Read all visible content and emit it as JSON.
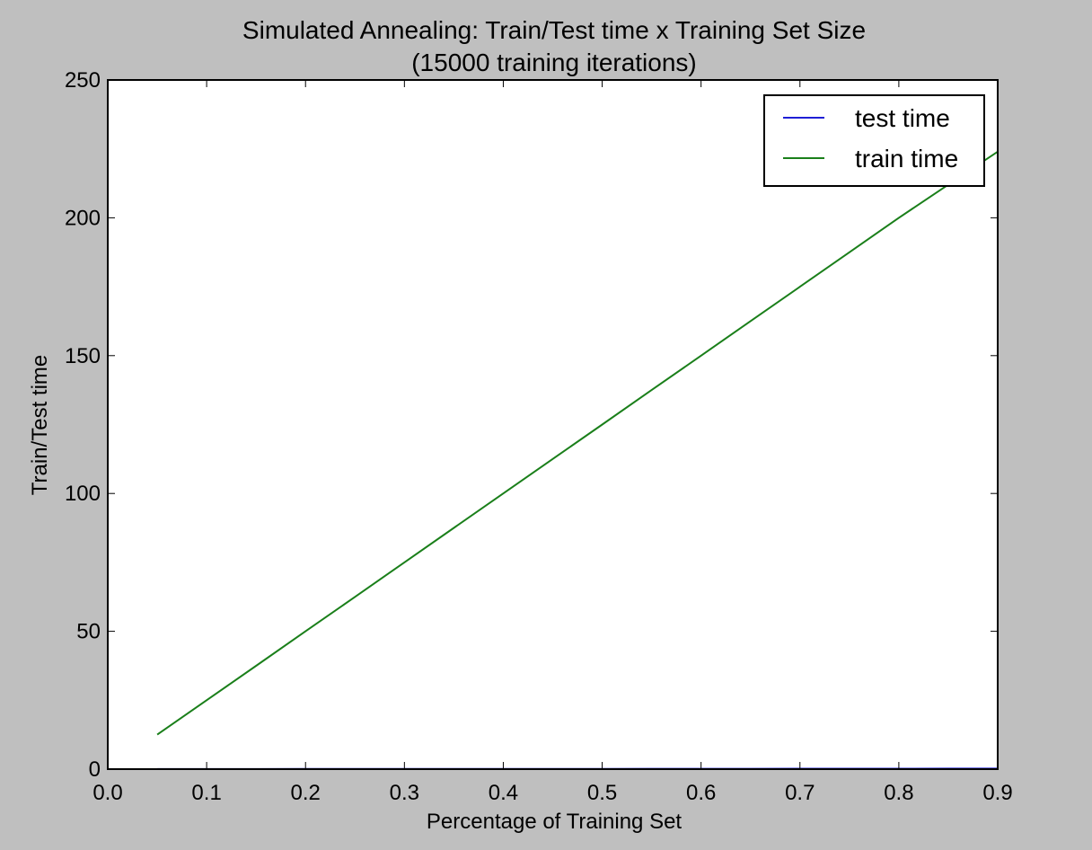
{
  "chart_data": {
    "type": "line",
    "title": "Simulated Annealing: Train/Test time x Training Set Size",
    "subtitle": "(15000 training iterations)",
    "xlabel": "Percentage of Training Set",
    "ylabel": "Train/Test time",
    "xlim": [
      0.0,
      0.9
    ],
    "ylim": [
      0,
      250
    ],
    "xticks": [
      0.0,
      0.1,
      0.2,
      0.3,
      0.4,
      0.5,
      0.6,
      0.7,
      0.8,
      0.9
    ],
    "xtick_labels": [
      "0.0",
      "0.1",
      "0.2",
      "0.3",
      "0.4",
      "0.5",
      "0.6",
      "0.7",
      "0.8",
      "0.9"
    ],
    "yticks": [
      0,
      50,
      100,
      150,
      200,
      250
    ],
    "ytick_labels": [
      "0",
      "50",
      "100",
      "150",
      "200",
      "250"
    ],
    "grid": false,
    "legend_position": "top-right",
    "series": [
      {
        "name": "test time",
        "color": "#1f1fd6",
        "x": [
          0.05,
          0.1,
          0.15,
          0.2,
          0.25,
          0.3,
          0.35,
          0.4,
          0.45,
          0.5,
          0.55,
          0.6,
          0.65,
          0.7,
          0.75,
          0.8,
          0.85,
          0.9
        ],
        "y": [
          0.02,
          0.03,
          0.04,
          0.05,
          0.06,
          0.07,
          0.08,
          0.09,
          0.1,
          0.11,
          0.12,
          0.13,
          0.14,
          0.15,
          0.16,
          0.17,
          0.18,
          0.19
        ]
      },
      {
        "name": "train time",
        "color": "#1a7f1a",
        "x": [
          0.05,
          0.1,
          0.15,
          0.2,
          0.25,
          0.3,
          0.35,
          0.4,
          0.45,
          0.5,
          0.55,
          0.6,
          0.65,
          0.7,
          0.75,
          0.8,
          0.85,
          0.9
        ],
        "y": [
          12.5,
          25,
          37.5,
          50,
          62.5,
          75,
          87.5,
          100,
          112.5,
          125,
          137.5,
          150,
          162.5,
          175,
          187.5,
          200,
          212,
          224
        ]
      }
    ]
  }
}
